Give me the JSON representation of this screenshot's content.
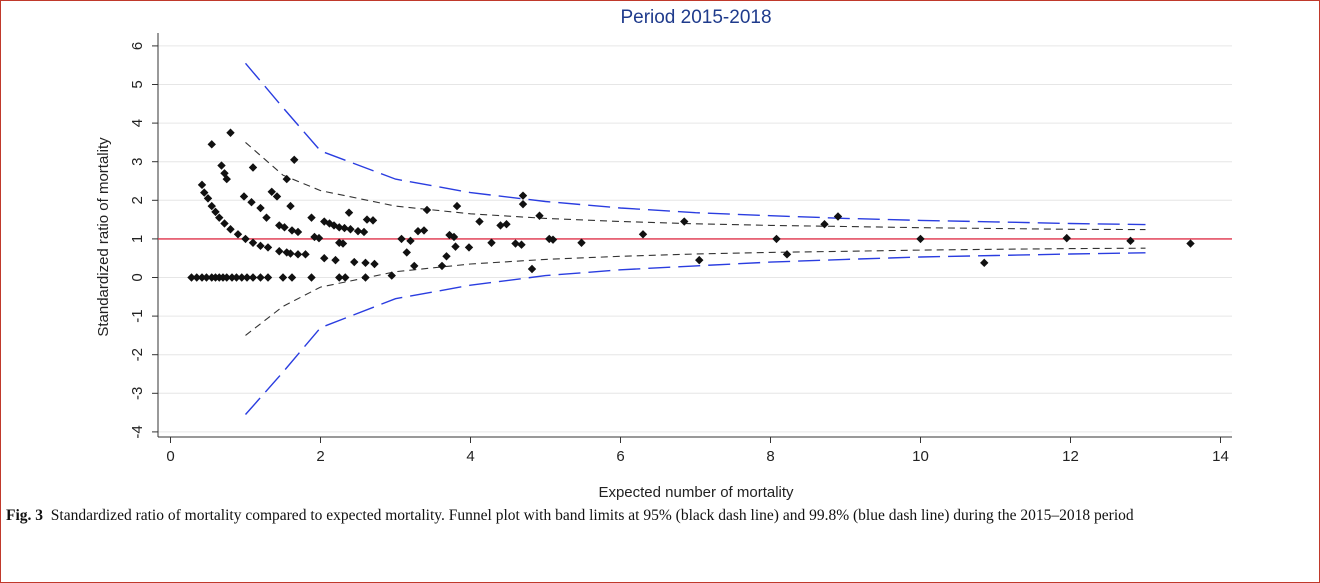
{
  "chart_data": {
    "type": "scatter",
    "title": "Period 2015-2018",
    "xlabel": "Expected number of mortality",
    "ylabel": "Standardized ratio of mortality",
    "xlim": [
      -0.2,
      14.1
    ],
    "ylim": [
      -4.3,
      6.3
    ],
    "x_ticks": [
      0,
      2,
      4,
      6,
      8,
      10,
      12,
      14
    ],
    "y_ticks": [
      6,
      5,
      4,
      3,
      2,
      1,
      0,
      -1,
      -2,
      -3,
      -4
    ],
    "grid": true,
    "reference_line": {
      "y": 1,
      "color": "#e0334a"
    },
    "limits": [
      {
        "label": "95%",
        "color": "#333333",
        "upper": [
          [
            1,
            3.5
          ],
          [
            1.5,
            2.65
          ],
          [
            2,
            2.25
          ],
          [
            3,
            1.85
          ],
          [
            4,
            1.65
          ],
          [
            5,
            1.53
          ],
          [
            6,
            1.45
          ],
          [
            7,
            1.39
          ],
          [
            8,
            1.35
          ],
          [
            9,
            1.32
          ],
          [
            10,
            1.29
          ],
          [
            11,
            1.27
          ],
          [
            12,
            1.25
          ],
          [
            13,
            1.24
          ]
        ],
        "lower": [
          [
            1,
            -1.5
          ],
          [
            1.5,
            -0.75
          ],
          [
            2,
            -0.25
          ],
          [
            3,
            0.15
          ],
          [
            4,
            0.35
          ],
          [
            5,
            0.47
          ],
          [
            6,
            0.55
          ],
          [
            7,
            0.61
          ],
          [
            8,
            0.65
          ],
          [
            9,
            0.68
          ],
          [
            10,
            0.71
          ],
          [
            11,
            0.73
          ],
          [
            12,
            0.75
          ],
          [
            13,
            0.76
          ]
        ]
      },
      {
        "label": "99.8%",
        "color": "#2a3de0",
        "upper": [
          [
            1,
            5.55
          ],
          [
            1.5,
            4.4
          ],
          [
            2,
            3.28
          ],
          [
            3,
            2.55
          ],
          [
            4,
            2.2
          ],
          [
            5,
            1.97
          ],
          [
            6,
            1.8
          ],
          [
            7,
            1.68
          ],
          [
            8,
            1.6
          ],
          [
            9,
            1.53
          ],
          [
            10,
            1.48
          ],
          [
            11,
            1.44
          ],
          [
            12,
            1.4
          ],
          [
            13,
            1.37
          ]
        ],
        "lower": [
          [
            1,
            -3.55
          ],
          [
            1.5,
            -2.45
          ],
          [
            2,
            -1.3
          ],
          [
            3,
            -0.55
          ],
          [
            4,
            -0.2
          ],
          [
            5,
            0.05
          ],
          [
            6,
            0.2
          ],
          [
            7,
            0.3
          ],
          [
            8,
            0.4
          ],
          [
            9,
            0.47
          ],
          [
            10,
            0.53
          ],
          [
            11,
            0.57
          ],
          [
            12,
            0.61
          ],
          [
            13,
            0.64
          ]
        ]
      }
    ],
    "points": [
      [
        0.28,
        0
      ],
      [
        0.35,
        0
      ],
      [
        0.42,
        0
      ],
      [
        0.48,
        0
      ],
      [
        0.55,
        0
      ],
      [
        0.6,
        0
      ],
      [
        0.65,
        0
      ],
      [
        0.7,
        0
      ],
      [
        0.75,
        0
      ],
      [
        0.82,
        0
      ],
      [
        0.88,
        0
      ],
      [
        0.95,
        0
      ],
      [
        1.02,
        0
      ],
      [
        1.1,
        0
      ],
      [
        1.2,
        0
      ],
      [
        1.3,
        0
      ],
      [
        1.5,
        0
      ],
      [
        1.62,
        0
      ],
      [
        1.88,
        0
      ],
      [
        2.25,
        0
      ],
      [
        2.33,
        0
      ],
      [
        2.6,
        0
      ],
      [
        0.42,
        2.4
      ],
      [
        0.45,
        2.2
      ],
      [
        0.5,
        2.05
      ],
      [
        0.55,
        1.85
      ],
      [
        0.6,
        1.7
      ],
      [
        0.65,
        1.55
      ],
      [
        0.72,
        1.4
      ],
      [
        0.8,
        1.25
      ],
      [
        0.9,
        1.12
      ],
      [
        1.0,
        1.0
      ],
      [
        1.1,
        0.9
      ],
      [
        1.2,
        0.82
      ],
      [
        1.3,
        0.78
      ],
      [
        0.55,
        3.45
      ],
      [
        0.68,
        2.9
      ],
      [
        0.72,
        2.7
      ],
      [
        0.75,
        2.55
      ],
      [
        0.8,
        3.75
      ],
      [
        0.98,
        2.1
      ],
      [
        1.08,
        1.95
      ],
      [
        1.1,
        2.85
      ],
      [
        1.2,
        1.8
      ],
      [
        1.28,
        1.55
      ],
      [
        1.35,
        2.22
      ],
      [
        1.42,
        2.1
      ],
      [
        1.45,
        1.35
      ],
      [
        1.52,
        1.3
      ],
      [
        1.55,
        2.55
      ],
      [
        1.6,
        1.85
      ],
      [
        1.65,
        3.05
      ],
      [
        1.62,
        1.22
      ],
      [
        1.7,
        1.18
      ],
      [
        1.45,
        0.68
      ],
      [
        1.55,
        0.65
      ],
      [
        1.6,
        0.62
      ],
      [
        1.7,
        0.6
      ],
      [
        1.8,
        0.6
      ],
      [
        1.88,
        1.55
      ],
      [
        1.92,
        1.05
      ],
      [
        1.98,
        1.02
      ],
      [
        2.05,
        1.45
      ],
      [
        2.12,
        1.4
      ],
      [
        2.18,
        1.35
      ],
      [
        2.25,
        1.3
      ],
      [
        2.32,
        1.28
      ],
      [
        2.4,
        1.25
      ],
      [
        2.5,
        1.2
      ],
      [
        2.58,
        1.18
      ],
      [
        2.38,
        1.68
      ],
      [
        2.62,
        1.5
      ],
      [
        2.7,
        1.48
      ],
      [
        2.05,
        0.5
      ],
      [
        2.2,
        0.45
      ],
      [
        2.25,
        0.9
      ],
      [
        2.3,
        0.88
      ],
      [
        2.45,
        0.4
      ],
      [
        2.6,
        0.38
      ],
      [
        2.72,
        0.35
      ],
      [
        2.95,
        0.05
      ],
      [
        3.08,
        1.0
      ],
      [
        3.15,
        0.65
      ],
      [
        3.2,
        0.95
      ],
      [
        3.25,
        0.3
      ],
      [
        3.3,
        1.2
      ],
      [
        3.38,
        1.22
      ],
      [
        3.42,
        1.75
      ],
      [
        3.62,
        0.3
      ],
      [
        3.68,
        0.55
      ],
      [
        3.72,
        1.1
      ],
      [
        3.78,
        1.05
      ],
      [
        3.8,
        0.8
      ],
      [
        3.82,
        1.85
      ],
      [
        3.98,
        0.78
      ],
      [
        4.12,
        1.45
      ],
      [
        4.28,
        0.9
      ],
      [
        4.4,
        1.35
      ],
      [
        4.48,
        1.38
      ],
      [
        4.6,
        0.88
      ],
      [
        4.68,
        0.85
      ],
      [
        4.7,
        1.9
      ],
      [
        4.7,
        2.12
      ],
      [
        4.82,
        0.22
      ],
      [
        4.92,
        1.6
      ],
      [
        5.05,
        1.0
      ],
      [
        5.1,
        0.98
      ],
      [
        5.48,
        0.9
      ],
      [
        6.3,
        1.12
      ],
      [
        6.85,
        1.45
      ],
      [
        7.05,
        0.45
      ],
      [
        8.08,
        1.0
      ],
      [
        8.22,
        0.6
      ],
      [
        8.72,
        1.38
      ],
      [
        8.9,
        1.58
      ],
      [
        10.0,
        1.0
      ],
      [
        10.85,
        0.38
      ],
      [
        11.95,
        1.02
      ],
      [
        12.8,
        0.95
      ],
      [
        13.6,
        0.88
      ]
    ]
  },
  "caption": {
    "label": "Fig. 3",
    "text": "Standardized ratio of mortality compared to expected mortality. Funnel plot with band limits at 95% (black dash line) and 99.8% (blue dash line) during the 2015–2018 period"
  }
}
